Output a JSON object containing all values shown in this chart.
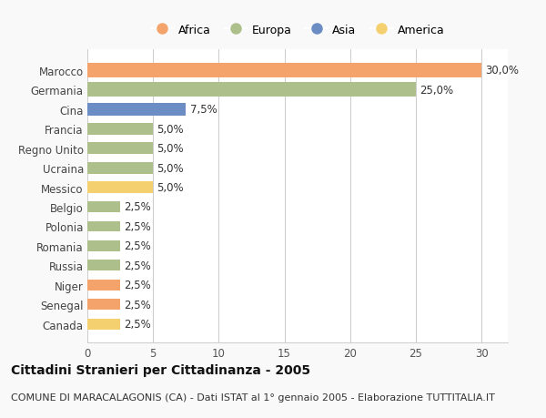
{
  "countries": [
    "Marocco",
    "Germania",
    "Cina",
    "Francia",
    "Regno Unito",
    "Ucraina",
    "Messico",
    "Belgio",
    "Polonia",
    "Romania",
    "Russia",
    "Niger",
    "Senegal",
    "Canada"
  ],
  "values": [
    30.0,
    25.0,
    7.5,
    5.0,
    5.0,
    5.0,
    5.0,
    2.5,
    2.5,
    2.5,
    2.5,
    2.5,
    2.5,
    2.5
  ],
  "continents": [
    "Africa",
    "Europa",
    "Asia",
    "Europa",
    "Europa",
    "Europa",
    "America",
    "Europa",
    "Europa",
    "Europa",
    "Europa",
    "Africa",
    "Africa",
    "America"
  ],
  "colors": {
    "Africa": "#F4A46A",
    "Europa": "#ADBF8A",
    "Asia": "#6B8DC4",
    "America": "#F5D06E"
  },
  "legend_order": [
    "Africa",
    "Europa",
    "Asia",
    "America"
  ],
  "title": "Cittadini Stranieri per Cittadinanza - 2005",
  "subtitle": "COMUNE DI MARACALAGONIS (CA) - Dati ISTAT al 1° gennaio 2005 - Elaborazione TUTTITALIA.IT",
  "xlim": [
    0,
    32
  ],
  "xticks": [
    0,
    5,
    10,
    15,
    20,
    25,
    30
  ],
  "background_color": "#f9f9f9",
  "bar_background": "#ffffff",
  "grid_color": "#cccccc",
  "title_fontsize": 10,
  "subtitle_fontsize": 8
}
